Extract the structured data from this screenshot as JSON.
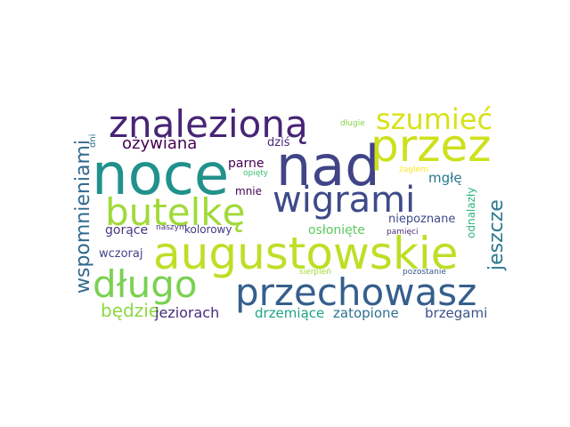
{
  "word_cloud": {
    "words": [
      {
        "text": "noce",
        "color": "#21918c"
      },
      {
        "text": "nad",
        "color": "#414487"
      },
      {
        "text": "przez",
        "color": "#cde11d"
      },
      {
        "text": "augustowskie",
        "color": "#bddf26"
      },
      {
        "text": "znalezioną",
        "color": "#482475"
      },
      {
        "text": "przechowasz",
        "color": "#355f8d"
      },
      {
        "text": "wigrami",
        "color": "#3e4a89"
      },
      {
        "text": "butelkę",
        "color": "#a0da39"
      },
      {
        "text": "długo",
        "color": "#7ad151"
      },
      {
        "text": "szumieć",
        "color": "#d8e219"
      },
      {
        "text": "wspomnieniami",
        "color": "#31688e"
      },
      {
        "text": "jeszcze",
        "color": "#2a788e"
      },
      {
        "text": "ożywiana",
        "color": "#440154"
      },
      {
        "text": "będzie",
        "color": "#8fd744"
      },
      {
        "text": "jeziorach",
        "color": "#472d7b"
      },
      {
        "text": "drzemiące",
        "color": "#20a386"
      },
      {
        "text": "zatopione",
        "color": "#2c728e"
      },
      {
        "text": "brzegami",
        "color": "#3b528b"
      },
      {
        "text": "osłonięte",
        "color": "#5ec962"
      },
      {
        "text": "gorące",
        "color": "#46337e"
      },
      {
        "text": "parne",
        "color": "#440154"
      },
      {
        "text": "mgłę",
        "color": "#2a788e"
      },
      {
        "text": "niepoznane",
        "color": "#3e4a89"
      },
      {
        "text": "odnalazły",
        "color": "#2fb47c"
      },
      {
        "text": "dziś",
        "color": "#482878"
      },
      {
        "text": "wczoraj",
        "color": "#404688"
      },
      {
        "text": "kolorowy",
        "color": "#443983"
      },
      {
        "text": "mnie",
        "color": "#440154"
      },
      {
        "text": "naszym",
        "color": "#46327e"
      },
      {
        "text": "pamięci",
        "color": "#472c7a"
      },
      {
        "text": "żaglem",
        "color": "#fde725"
      },
      {
        "text": "opięty",
        "color": "#3dbc74"
      },
      {
        "text": "dni",
        "color": "#2e6e8e"
      },
      {
        "text": "długie",
        "color": "#86d549"
      },
      {
        "text": "sierpień",
        "color": "#a2da37"
      },
      {
        "text": "pozostanie",
        "color": "#38598c"
      }
    ]
  }
}
